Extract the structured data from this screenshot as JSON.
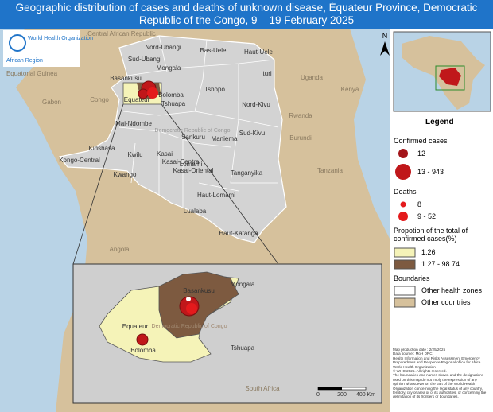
{
  "header": {
    "title": "Geographic distribution of cases and deaths of unknown disease, Équateur Province, Democratic Republic of the Congo, 9 – 19 February 2025"
  },
  "logo": {
    "org": "World Health Organization",
    "region": "African Region"
  },
  "map": {
    "provinces": [
      "Nord-Ubangi",
      "Bas-Uele",
      "Haut-Uele",
      "Sud-Ubangi",
      "Mongala",
      "Ituri",
      "Basankusu",
      "Bolomba",
      "Equateur",
      "Tshuapa",
      "Tshopo",
      "Nord-Kivu",
      "Mai-Ndombe",
      "Sankuru",
      "Maniema",
      "Sud-Kivu",
      "Kinshasa",
      "Kwilu",
      "Kasai",
      "Lomami",
      "Kongo-Central",
      "Kwango",
      "Kasai-Central",
      "Kasai-Oriental",
      "Tanganyika",
      "Haut-Lomami",
      "Lualaba",
      "Haut-Katanga"
    ],
    "country_label": "Democratic Republic of Congo",
    "countries": [
      "Central African Republic",
      "Equatorial Guinea",
      "Gabon",
      "Congo",
      "Uganda",
      "Kenya",
      "Rwanda",
      "Burundi",
      "Tanzania",
      "Angola",
      "South Africa"
    ]
  },
  "inset": {
    "labels": [
      "Basankusu",
      "Mongala",
      "Democratic Republic of Congo",
      "Equateur",
      "Bolomba",
      "Tshuapa"
    ]
  },
  "north": "N",
  "legend": {
    "title": "Legend",
    "cases_title": "Confirmed cases",
    "cases": [
      "12",
      "13 - 943"
    ],
    "deaths_title": "Deaths",
    "deaths": [
      "8",
      "9 - 52"
    ],
    "proportion_title": "Propotion of the total of confirmed cases(%)",
    "proportion": [
      "1.26",
      "1.27 - 98.74"
    ],
    "boundaries_title": "Boundaries",
    "boundaries": [
      "Other health zones",
      "Other countries"
    ]
  },
  "footnote": [
    "Map production date : 2/25/2025",
    "Data source : MoH DRC",
    "Health Information and Risks Assessment Emergency Preparedness and Response Regional office for Africa",
    "World Health Organization",
    "© WHO 2025. All rights reserved.",
    "The boundaries and names shown and the designations used on this map do not imply the expression of any opinion whatsoever on the part of the World Health Organization concerning the legal status of any country, territory, city or area or of its authorities, or concerning the delimitation of its frontiers or boundaries."
  ],
  "scale": [
    "0",
    "200",
    "400 Km"
  ]
}
